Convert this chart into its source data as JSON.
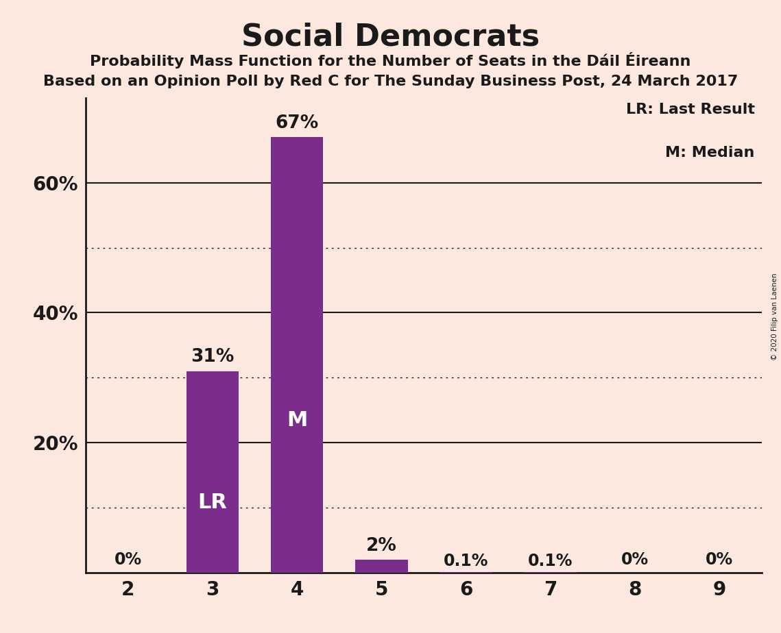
{
  "title": "Social Democrats",
  "subtitle1": "Probability Mass Function for the Number of Seats in the Dáil Éireann",
  "subtitle2": "Based on an Opinion Poll by Red C for The Sunday Business Post, 24 March 2017",
  "categories": [
    2,
    3,
    4,
    5,
    6,
    7,
    8,
    9
  ],
  "values": [
    0.0,
    31.0,
    67.0,
    2.0,
    0.1,
    0.1,
    0.0,
    0.0
  ],
  "bar_color": "#7b2d8b",
  "background_color": "#fce8df",
  "text_color": "#1a1a1a",
  "bar_labels": [
    "0%",
    "31%",
    "67%",
    "2%",
    "0.1%",
    "0.1%",
    "0%",
    "0%"
  ],
  "inside_labels": [
    null,
    "LR",
    "M",
    null,
    null,
    null,
    null,
    null
  ],
  "legend_text1": "LR: Last Result",
  "legend_text2": "M: Median",
  "copyright": "© 2020 Filip van Laenen",
  "solid_yticks": [
    20,
    40,
    60
  ],
  "dotted_yticks": [
    10,
    30,
    50
  ],
  "ylim": [
    0,
    73
  ]
}
